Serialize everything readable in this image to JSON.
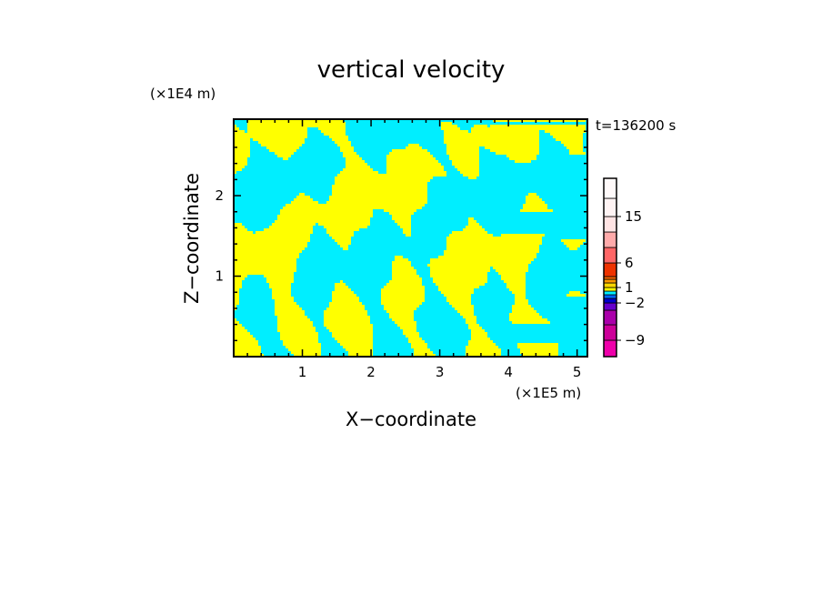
{
  "chart_data": {
    "type": "heatmap",
    "title": "vertical velocity",
    "xlabel": "X−coordinate",
    "ylabel": "Z−coordinate",
    "x_unit": "(×1E5 m)",
    "y_unit": "(×1E4 m)",
    "time_label": "t=136200 s",
    "xlim": [
      0,
      5.15
    ],
    "ylim": [
      0,
      2.95
    ],
    "x_ticks": [
      "1",
      "2",
      "3",
      "4",
      "5"
    ],
    "y_ticks": [
      "1",
      "2"
    ],
    "x_tick_values": [
      1,
      2,
      3,
      4,
      5
    ],
    "y_tick_values": [
      1,
      2
    ],
    "colors": {
      "positive_small": "#ffff00",
      "negative_small": "#00eeff"
    },
    "colorbar": {
      "levels": [
        -12,
        -9,
        -6,
        -4,
        -2,
        -1,
        -0.5,
        0,
        0.5,
        1,
        2,
        4,
        6,
        9,
        12,
        15,
        20,
        25
      ],
      "colors": [
        "#ee00aa",
        "#cc0099",
        "#aa00aa",
        "#6600cc",
        "#0000cc",
        "#0066ff",
        "#00eeff",
        "#ffff00",
        "#ffd700",
        "#ff9900",
        "#ff6600",
        "#ee3300",
        "#ff6666",
        "#ffaaaa",
        "#ffe4e4",
        "#fff4f4",
        "#fffafa"
      ],
      "tick_labels": [
        "15",
        "6",
        "1",
        "−2",
        "−9"
      ],
      "tick_values": [
        15,
        6,
        1,
        -2,
        -9
      ]
    }
  }
}
